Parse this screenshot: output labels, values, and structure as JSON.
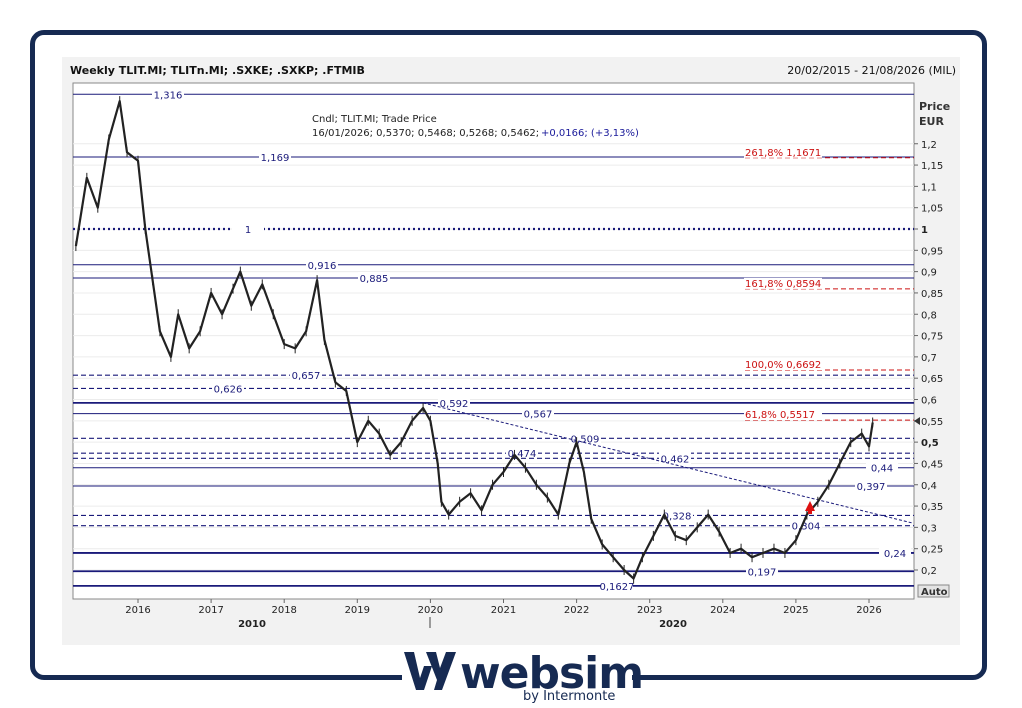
{
  "header": {
    "title": "Weekly TLIT.MI; TLITn.MI; .SXKE; .SXKP; .FTMIB",
    "date_range": "20/02/2015 - 21/08/2026 (MIL)"
  },
  "legend": {
    "line1": "Cndl; TLIT.MI; Trade Price",
    "line2_values": "16/01/2026; 0,5370; 0,5468; 0,5268; 0,5462;",
    "line2_change": "+0,0166; (+3,13%)"
  },
  "axis": {
    "y_label_1": "Price",
    "y_label_2": "EUR",
    "auto_label": "Auto",
    "year_ticks": [
      "2016",
      "2017",
      "2018",
      "2019",
      "2020",
      "2021",
      "2022",
      "2023",
      "2024",
      "2025",
      "2026"
    ],
    "decade_labels": [
      "2010",
      "2020"
    ]
  },
  "logo": {
    "word": "websim",
    "sub": "by Intermonte"
  },
  "colors": {
    "support": "#1a1a7a",
    "fib": "#cc1111",
    "candle": "#222222",
    "frame": "#162a52",
    "arrow": "#dd1111"
  },
  "chart_data": {
    "type": "line",
    "title": "Weekly TLIT.MI; TLITn.MI; .SXKE; .SXKP; .FTMIB",
    "ylabel": "Price EUR",
    "ylim": [
      0.15,
      1.35
    ],
    "xlim": [
      2015.15,
      2026.6
    ],
    "y_ticks": [
      "1,2",
      "1,15",
      "1,1",
      "1,05",
      "1",
      "0,95",
      "0,9",
      "0,85",
      "0,8",
      "0,75",
      "0,7",
      "0,65",
      "0,6",
      "0,55",
      "0,5",
      "0,45",
      "0,4",
      "0,35",
      "0,3",
      "0,25",
      "0,2"
    ],
    "y_tick_values": [
      1.2,
      1.15,
      1.1,
      1.05,
      1.0,
      0.95,
      0.9,
      0.85,
      0.8,
      0.75,
      0.7,
      0.65,
      0.6,
      0.55,
      0.5,
      0.45,
      0.4,
      0.35,
      0.3,
      0.25,
      0.2
    ],
    "last_price_marker": 0.546,
    "series": [
      {
        "x": [
          2015.15,
          2015.3,
          2015.45,
          2015.6,
          2015.75,
          2015.85,
          2016.0,
          2016.1,
          2016.2,
          2016.3,
          2016.45,
          2016.55,
          2016.7,
          2016.85,
          2017.0,
          2017.15,
          2017.3,
          2017.4,
          2017.55,
          2017.7,
          2017.85,
          2018.0,
          2018.15,
          2018.3,
          2018.45,
          2018.55,
          2018.7,
          2018.85,
          2019.0,
          2019.15,
          2019.3,
          2019.45,
          2019.6,
          2019.75,
          2019.9,
          2020.0,
          2020.1,
          2020.15,
          2020.25,
          2020.4,
          2020.55,
          2020.7,
          2020.85,
          2021.0,
          2021.15,
          2021.3,
          2021.45,
          2021.6,
          2021.75,
          2021.9,
          2022.0,
          2022.1,
          2022.2,
          2022.35,
          2022.5,
          2022.65,
          2022.78,
          2022.9,
          2023.05,
          2023.2,
          2023.35,
          2023.5,
          2023.65,
          2023.8,
          2023.95,
          2024.1,
          2024.25,
          2024.4,
          2024.55,
          2024.7,
          2024.85,
          2025.0,
          2025.15,
          2025.3,
          2025.45,
          2025.6,
          2025.75,
          2025.9,
          2026.0,
          2026.05
        ],
        "values": [
          0.96,
          1.12,
          1.05,
          1.21,
          1.3,
          1.18,
          1.16,
          1.0,
          0.88,
          0.76,
          0.7,
          0.8,
          0.72,
          0.76,
          0.85,
          0.8,
          0.86,
          0.9,
          0.82,
          0.87,
          0.8,
          0.73,
          0.72,
          0.76,
          0.88,
          0.74,
          0.64,
          0.62,
          0.5,
          0.55,
          0.52,
          0.47,
          0.5,
          0.55,
          0.58,
          0.55,
          0.45,
          0.36,
          0.33,
          0.36,
          0.38,
          0.34,
          0.4,
          0.43,
          0.47,
          0.44,
          0.4,
          0.37,
          0.33,
          0.45,
          0.5,
          0.43,
          0.32,
          0.26,
          0.23,
          0.2,
          0.18,
          0.23,
          0.28,
          0.33,
          0.28,
          0.27,
          0.3,
          0.33,
          0.29,
          0.24,
          0.25,
          0.23,
          0.24,
          0.25,
          0.24,
          0.27,
          0.33,
          0.36,
          0.4,
          0.45,
          0.5,
          0.52,
          0.49,
          0.546
        ]
      }
    ],
    "support_lines": [
      {
        "value": 1.316,
        "label": "1,316",
        "style": "solid"
      },
      {
        "value": 1.169,
        "label": "1,169",
        "style": "solid"
      },
      {
        "value": 1.0,
        "label": "1",
        "style": "dotted"
      },
      {
        "value": 0.916,
        "label": "0,916",
        "style": "solid"
      },
      {
        "value": 0.885,
        "label": "0,885",
        "style": "solid"
      },
      {
        "value": 0.657,
        "label": "0,657",
        "style": "dashed"
      },
      {
        "value": 0.626,
        "label": "0,626",
        "style": "dashed"
      },
      {
        "value": 0.592,
        "label": "0,592",
        "style": "solid"
      },
      {
        "value": 0.567,
        "label": "0,567",
        "style": "solid"
      },
      {
        "value": 0.509,
        "label": "0,509",
        "style": "dashed"
      },
      {
        "value": 0.474,
        "label": "0,474",
        "style": "dashed"
      },
      {
        "value": 0.462,
        "label": "0,462",
        "style": "dashed"
      },
      {
        "value": 0.44,
        "label": "0,44",
        "style": "solid"
      },
      {
        "value": 0.397,
        "label": "0,397",
        "style": "solid"
      },
      {
        "value": 0.328,
        "label": "0,328",
        "style": "dashed"
      },
      {
        "value": 0.304,
        "label": "0,304",
        "style": "dashed"
      },
      {
        "value": 0.24,
        "label": "0,24",
        "style": "solid"
      },
      {
        "value": 0.197,
        "label": "0,197",
        "style": "solid"
      },
      {
        "value": 0.1627,
        "label": "0,1627",
        "style": "solid"
      }
    ],
    "fib_levels": [
      {
        "value": 1.1671,
        "label": "261,8% 1,1671"
      },
      {
        "value": 0.8594,
        "label": "161,8% 0,8594"
      },
      {
        "value": 0.6692,
        "label": "100,0% 0,6692"
      },
      {
        "value": 0.5517,
        "label": "61,8%  0,5517"
      }
    ],
    "trendline": {
      "from": [
        2019.9,
        0.592
      ],
      "to": [
        2026.6,
        0.31
      ]
    }
  }
}
